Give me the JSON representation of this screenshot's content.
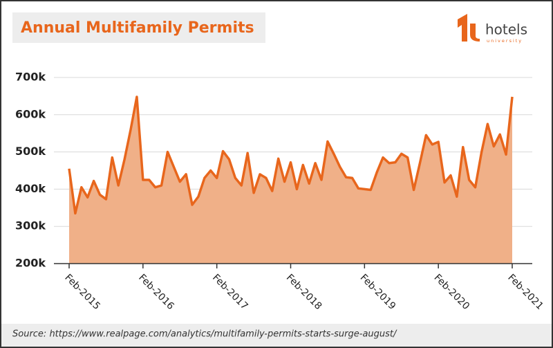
{
  "chart_data": {
    "type": "area",
    "title": "Annual Multifamily Permits",
    "source": "Source: https://www.realpage.com/analytics/multifamily-permits-starts-surge-august/",
    "categories": [
      "Feb-2015",
      null,
      null,
      null,
      null,
      null,
      null,
      null,
      null,
      null,
      null,
      null,
      "Feb-2016",
      null,
      null,
      null,
      null,
      null,
      null,
      null,
      null,
      null,
      null,
      null,
      "Feb-2017",
      null,
      null,
      null,
      null,
      null,
      null,
      null,
      null,
      null,
      null,
      null,
      "Feb-2018",
      null,
      null,
      null,
      null,
      null,
      null,
      null,
      null,
      null,
      null,
      null,
      "Feb-2019",
      null,
      null,
      null,
      null,
      null,
      null,
      null,
      null,
      null,
      null,
      null,
      "Feb-2020",
      null,
      null,
      null,
      null,
      null,
      null,
      null,
      null,
      null,
      null,
      null,
      "Feb-2021"
    ],
    "series": [
      {
        "name": "Multifamily Permits",
        "color": "#e8661c",
        "fill": "#f0b088",
        "values": [
          455000,
          335000,
          405000,
          378000,
          422000,
          385000,
          373000,
          485000,
          410000,
          480000,
          560000,
          648000,
          425000,
          425000,
          405000,
          410000,
          500000,
          460000,
          420000,
          440000,
          358000,
          380000,
          430000,
          450000,
          430000,
          502000,
          480000,
          430000,
          410000,
          497000,
          390000,
          440000,
          430000,
          395000,
          482000,
          420000,
          472000,
          400000,
          465000,
          415000,
          470000,
          425000,
          528000,
          495000,
          460000,
          432000,
          430000,
          402000,
          400000,
          398000,
          445000,
          485000,
          470000,
          472000,
          495000,
          485000,
          398000,
          470000,
          545000,
          520000,
          527000,
          418000,
          437000,
          380000,
          513000,
          425000,
          405000,
          498000,
          575000,
          515000,
          547000,
          493000,
          648000
        ]
      }
    ],
    "ylim": [
      200000,
      700000
    ],
    "yticks": [
      {
        "value": 200000,
        "label": "200k"
      },
      {
        "value": 300000,
        "label": "300k"
      },
      {
        "value": 400000,
        "label": "400k"
      },
      {
        "value": 500000,
        "label": "500k"
      },
      {
        "value": 600000,
        "label": "600k"
      },
      {
        "value": 700000,
        "label": "700k"
      }
    ],
    "grid": true
  },
  "logo": {
    "text": "hotels",
    "subtext": "university"
  }
}
